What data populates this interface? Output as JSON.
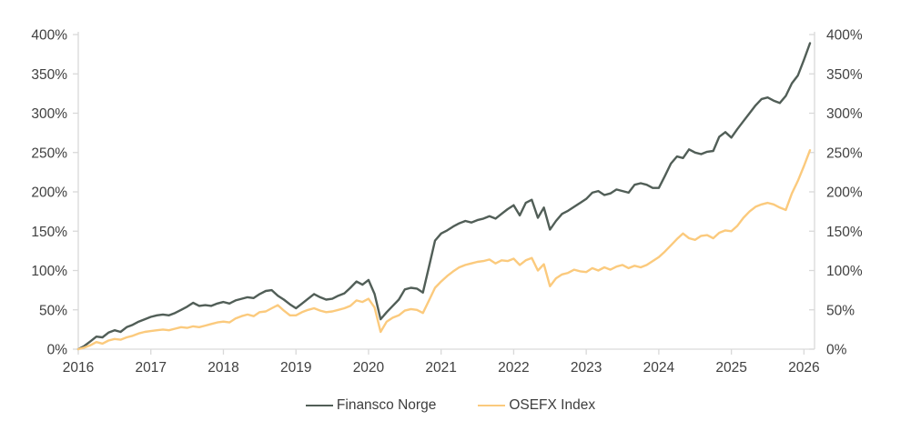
{
  "chart": {
    "title": "",
    "legend": [
      {
        "label": "Finansco Norge",
        "color": "#515E57"
      },
      {
        "label": "OSEFX Index",
        "color": "#FBCA7D"
      }
    ]
  },
  "chart_data": {
    "type": "line",
    "title": "",
    "xlabel": "",
    "ylabel": "",
    "x_unit": "month",
    "x_start": "2016-01",
    "x_end": "2026-02",
    "x_tick_labels": [
      "2016",
      "2017",
      "2018",
      "2019",
      "2020",
      "2021",
      "2022",
      "2023",
      "2024",
      "2025",
      "2026"
    ],
    "y_tick_labels": [
      "0%",
      "50%",
      "100%",
      "150%",
      "200%",
      "250%",
      "300%",
      "350%",
      "400%"
    ],
    "y_tick_values": [
      0,
      50,
      100,
      150,
      200,
      250,
      300,
      350,
      400
    ],
    "ylim": [
      0,
      400
    ],
    "y_unit": "percent-return",
    "dual_y_axis": true,
    "grid": false,
    "legend_position": "bottom-center",
    "axis_color": "#D9D9D9",
    "label_color": "#404040",
    "series": [
      {
        "name": "Finansco Norge",
        "color": "#515E57",
        "values": [
          0,
          4,
          10,
          16,
          15,
          21,
          24,
          22,
          28,
          31,
          35,
          38,
          41,
          43,
          44,
          43,
          46,
          50,
          54,
          59,
          55,
          56,
          55,
          58,
          60,
          58,
          62,
          64,
          66,
          65,
          70,
          74,
          75,
          68,
          63,
          57,
          52,
          58,
          64,
          70,
          66,
          63,
          64,
          68,
          71,
          78,
          86,
          82,
          88,
          70,
          38,
          47,
          55,
          63,
          76,
          78,
          77,
          72,
          105,
          138,
          147,
          151,
          156,
          160,
          163,
          161,
          164,
          166,
          169,
          166,
          172,
          178,
          183,
          170,
          186,
          190,
          167,
          180,
          152,
          163,
          172,
          176,
          181,
          186,
          191,
          199,
          201,
          196,
          198,
          203,
          201,
          199,
          209,
          211,
          209,
          205,
          205,
          220,
          236,
          245,
          243,
          254,
          250,
          248,
          251,
          252,
          270,
          276,
          269,
          280,
          290,
          300,
          310,
          318,
          320,
          316,
          313,
          322,
          338,
          348,
          368,
          389
        ]
      },
      {
        "name": "OSEFX Index",
        "color": "#FBCA7D",
        "values": [
          0,
          2,
          5,
          9,
          7,
          11,
          13,
          12,
          15,
          17,
          20,
          22,
          23,
          24,
          25,
          24,
          26,
          28,
          27,
          29,
          28,
          30,
          32,
          34,
          35,
          34,
          39,
          42,
          44,
          42,
          47,
          48,
          52,
          56,
          49,
          43,
          43,
          47,
          50,
          52,
          49,
          47,
          48,
          50,
          52,
          55,
          62,
          60,
          64,
          53,
          22,
          35,
          40,
          43,
          49,
          51,
          50,
          46,
          62,
          78,
          86,
          93,
          99,
          104,
          107,
          109,
          111,
          112,
          114,
          109,
          113,
          112,
          115,
          107,
          113,
          116,
          100,
          108,
          80,
          90,
          95,
          97,
          101,
          99,
          98,
          103,
          100,
          104,
          101,
          105,
          107,
          103,
          106,
          104,
          107,
          112,
          117,
          124,
          132,
          140,
          147,
          141,
          139,
          144,
          145,
          141,
          148,
          151,
          150,
          157,
          167,
          175,
          181,
          184,
          186,
          184,
          180,
          177,
          198,
          214,
          233,
          253
        ]
      }
    ]
  }
}
